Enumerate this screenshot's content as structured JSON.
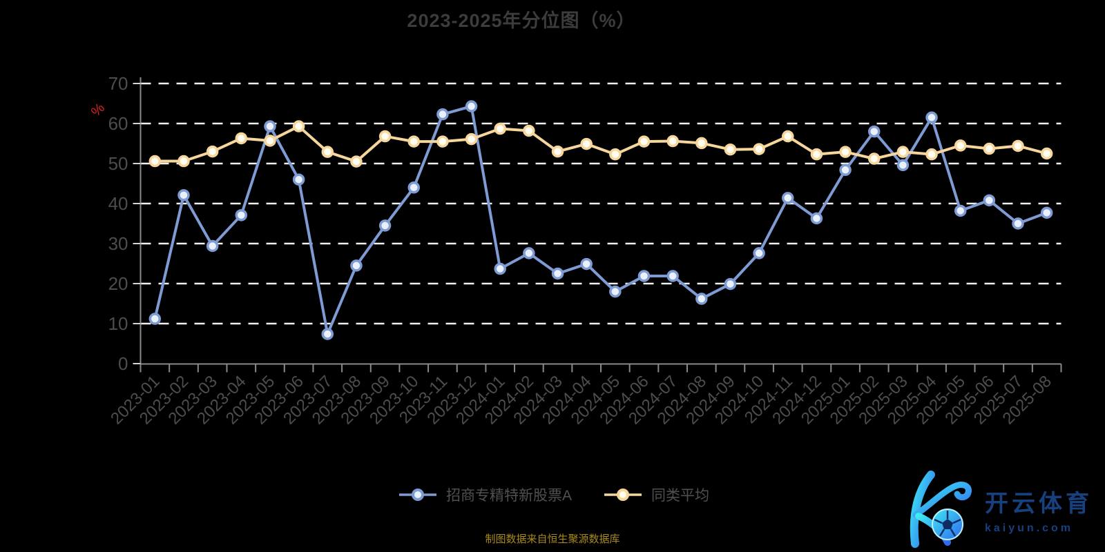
{
  "title": "2023-2025年分位图（%）",
  "y_axis_unit_label": "%",
  "footer_note": "制图数据来自恒生聚源数据库",
  "watermark": {
    "brand_cn": "开云体育",
    "brand_url": "kaiyun.com",
    "logo_icon": "kaiyun-k-football-logo"
  },
  "colors": {
    "background": "#000000",
    "title": "#3c3c3c",
    "axis_label": "#4d4d4d",
    "grid_line": "#f0f0f0",
    "axis_line": "#8a8a8a",
    "y_tick": "#d6d6d6",
    "unit_label_red": "#e02020",
    "footer": "#aa8a1a",
    "legend_text": "#505050",
    "watermark_text": "#17407e",
    "watermark_gradient_start": "#3fe8f2",
    "watermark_gradient_end": "#2f6af0"
  },
  "chart_data": {
    "type": "line",
    "title": "2023-2025年分位图（%）",
    "xlabel": "",
    "ylabel": "%",
    "ylim": [
      0,
      70
    ],
    "y_ticks": [
      0,
      10,
      20,
      30,
      40,
      50,
      60,
      70
    ],
    "grid": "horizontal-dashed-white",
    "legend_position": "bottom",
    "categories": [
      "2023-01",
      "2023-02",
      "2023-03",
      "2023-04",
      "2023-05",
      "2023-06",
      "2023-07",
      "2023-08",
      "2023-09",
      "2023-10",
      "2023-11",
      "2023-12",
      "2024-01",
      "2024-02",
      "2024-03",
      "2024-04",
      "2024-05",
      "2024-06",
      "2024-07",
      "2024-08",
      "2024-09",
      "2024-10",
      "2024-11",
      "2024-12",
      "2025-01",
      "2025-02",
      "2025-03",
      "2025-04",
      "2025-05",
      "2025-06",
      "2025-07",
      "2025-08"
    ],
    "series": [
      {
        "name": "招商专精特新股票A",
        "color": "#7e9bd4",
        "marker_fill": "#eaf1fc",
        "values": [
          11.2,
          42.1,
          29.4,
          37.1,
          59.3,
          46.0,
          7.4,
          24.5,
          34.5,
          44.0,
          62.3,
          64.3,
          23.7,
          27.6,
          22.5,
          24.9,
          18.0,
          21.9,
          21.9,
          16.2,
          19.9,
          27.6,
          41.4,
          36.3,
          48.4,
          58.0,
          49.6,
          61.5,
          38.2,
          40.8,
          35.0,
          37.7
        ]
      },
      {
        "name": "同类平均",
        "color": "#f7d69b",
        "marker_fill": "#fffcf2",
        "values": [
          50.6,
          50.6,
          53.0,
          56.3,
          55.7,
          59.3,
          52.9,
          50.5,
          56.8,
          55.5,
          55.5,
          56.1,
          58.7,
          58.2,
          53.0,
          54.9,
          52.3,
          55.5,
          55.6,
          55.1,
          53.5,
          53.6,
          56.8,
          52.3,
          52.9,
          51.2,
          52.9,
          52.3,
          54.5,
          53.7,
          54.4,
          52.5
        ]
      }
    ]
  }
}
